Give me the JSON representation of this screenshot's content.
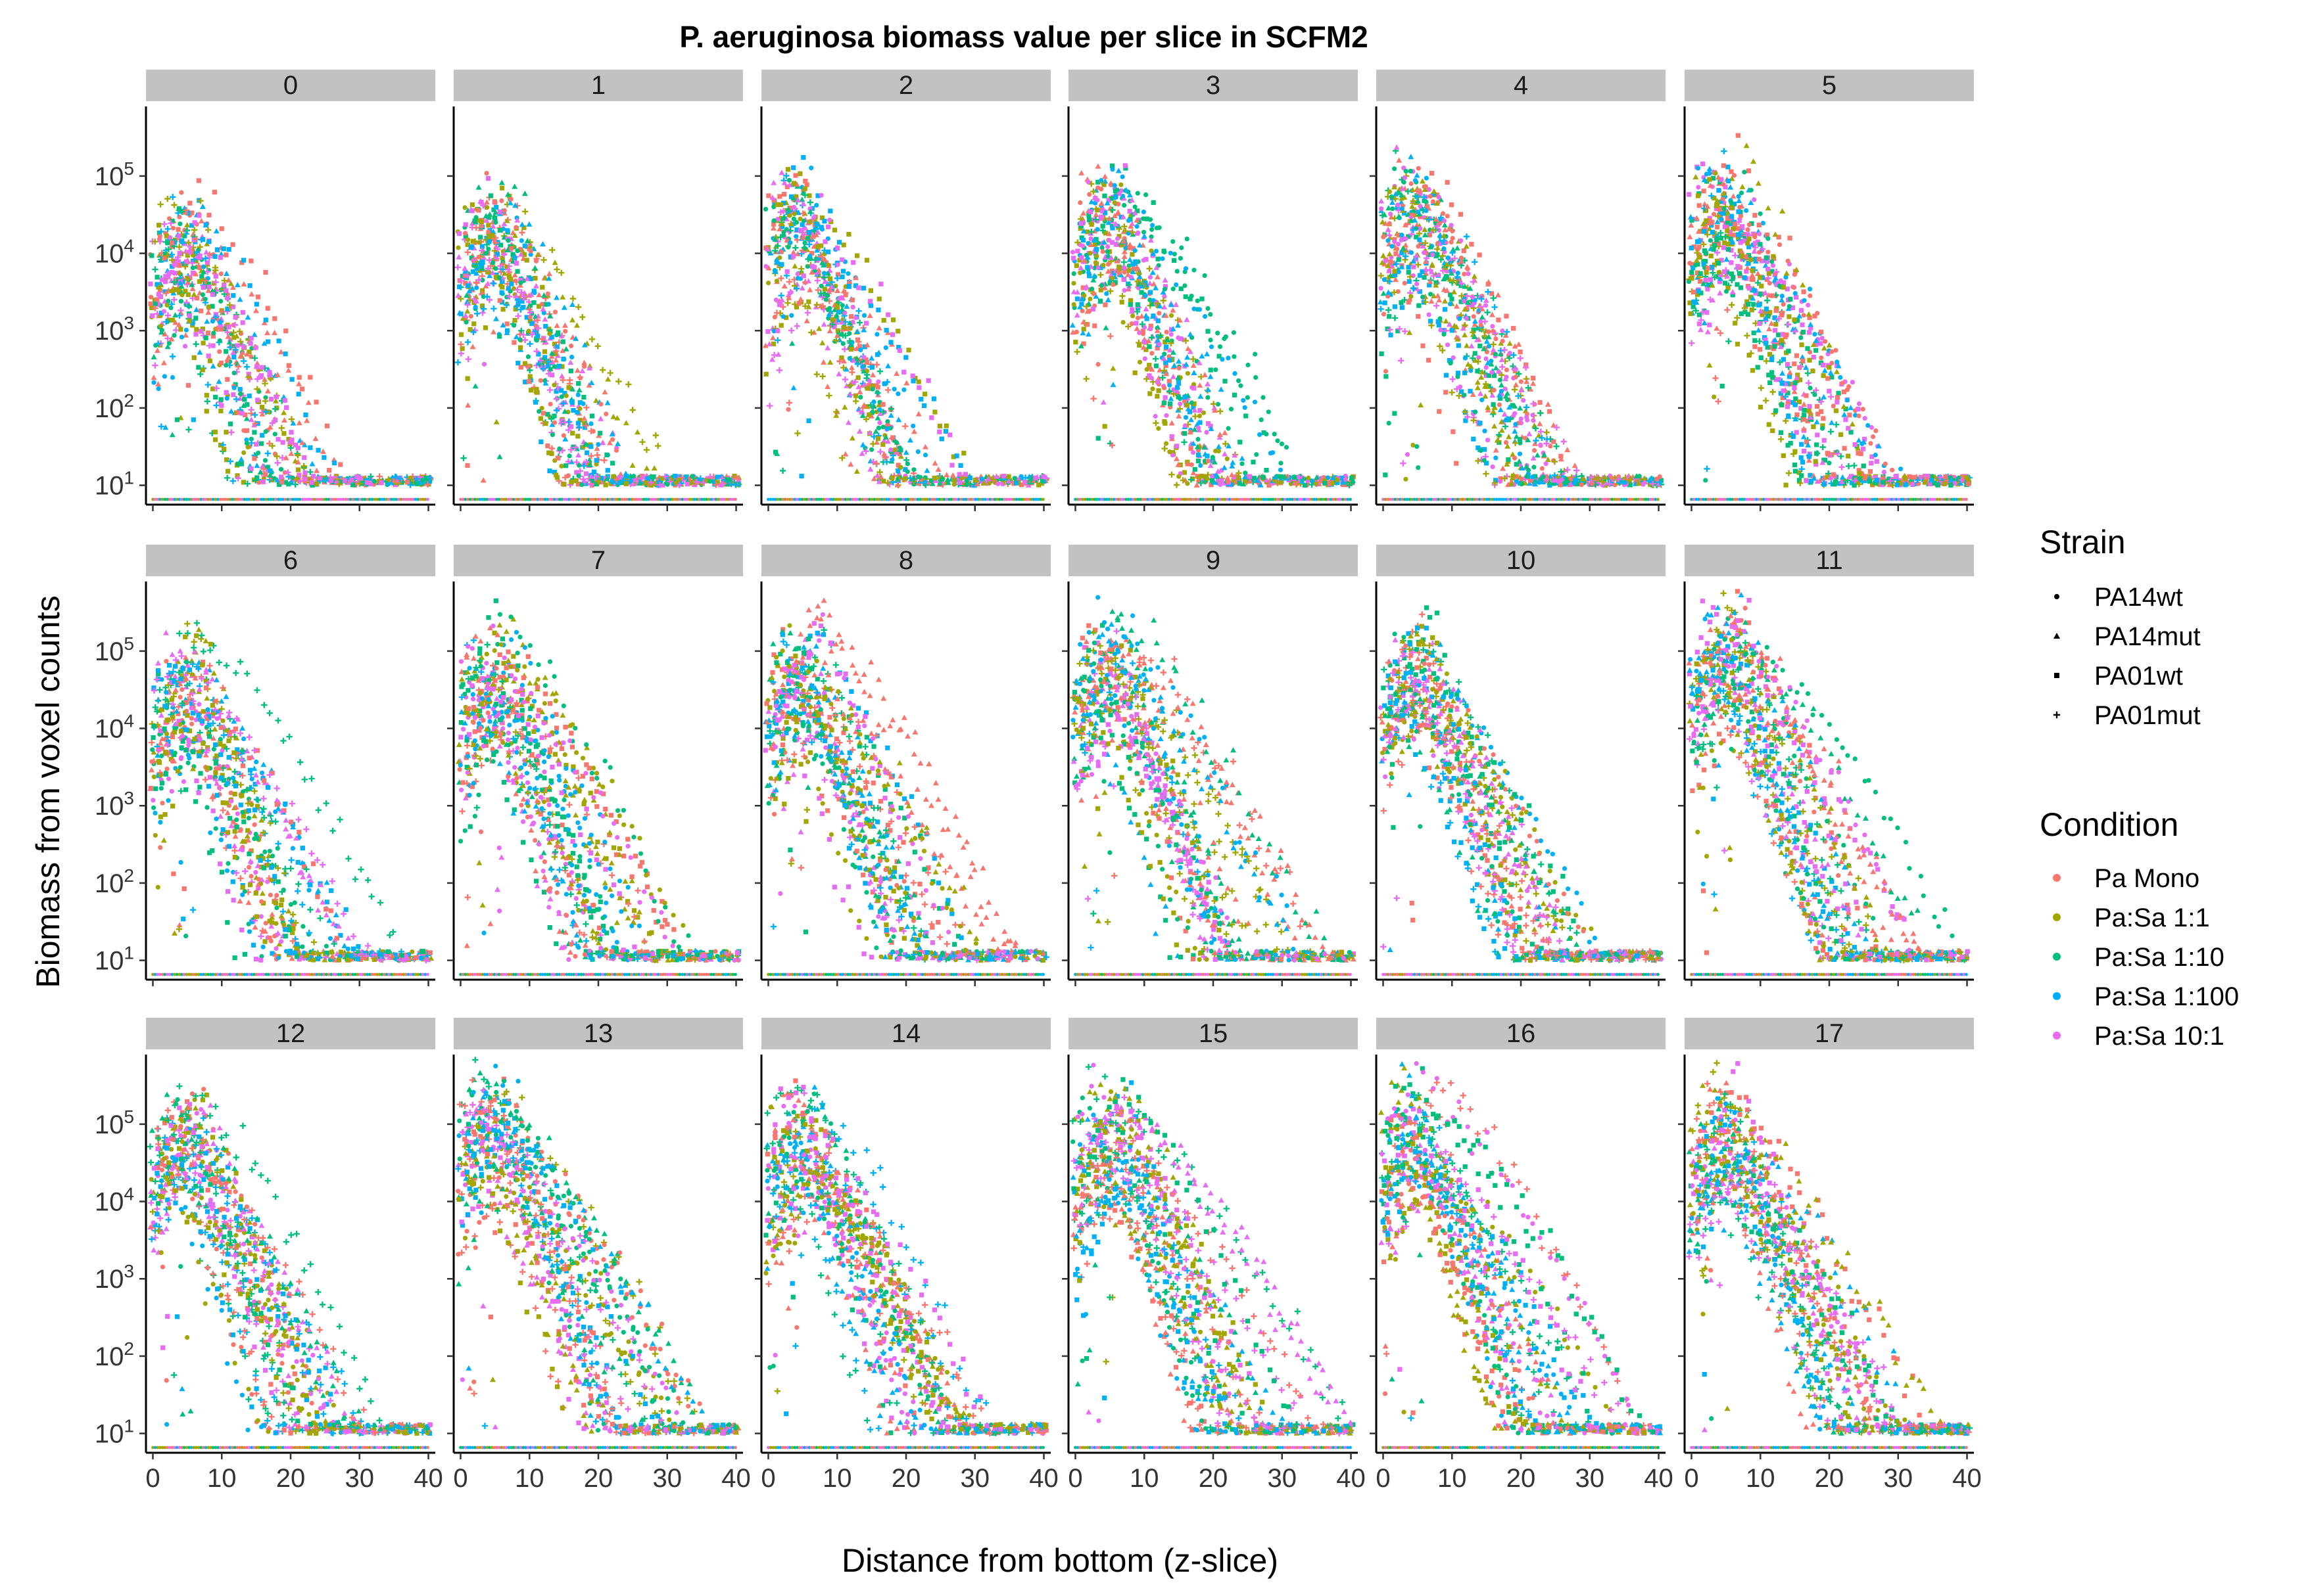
{
  "chart_data": {
    "type": "scatter",
    "title": "P. aeruginosa biomass value per slice in SCFM2",
    "xlabel": "Distance from bottom (z-slice)",
    "ylabel": "Biomass from voxel counts",
    "xlim": [
      -1,
      41
    ],
    "ylim_log10": [
      0.75,
      5.9
    ],
    "y_scale": "log10",
    "x_ticks": [
      "0",
      "10",
      "20",
      "30",
      "40"
    ],
    "x_tick_values": [
      0,
      10,
      20,
      30,
      40
    ],
    "y_ticks": [
      {
        "base": "10",
        "exp": "1",
        "value": 10
      },
      {
        "base": "10",
        "exp": "2",
        "value": 100
      },
      {
        "base": "10",
        "exp": "3",
        "value": 1000
      },
      {
        "base": "10",
        "exp": "4",
        "value": 10000
      },
      {
        "base": "10",
        "exp": "5",
        "value": 100000
      }
    ],
    "facets": [
      "0",
      "1",
      "2",
      "3",
      "4",
      "5",
      "6",
      "7",
      "8",
      "9",
      "10",
      "11",
      "12",
      "13",
      "14",
      "15",
      "16",
      "17"
    ],
    "facet_peaks_log10": [
      4.8,
      4.95,
      5.1,
      5.2,
      5.2,
      5.25,
      5.35,
      5.4,
      5.5,
      5.55,
      5.55,
      5.6,
      5.6,
      5.65,
      5.65,
      5.65,
      5.65,
      5.65
    ],
    "grid": false,
    "legend_placement": "right",
    "legend": {
      "strain_title": "Strain",
      "strains": [
        {
          "name": "PA14wt",
          "shape": "circle"
        },
        {
          "name": "PA14mut",
          "shape": "triangle"
        },
        {
          "name": "PA01wt",
          "shape": "square"
        },
        {
          "name": "PA01mut",
          "shape": "plus"
        }
      ],
      "condition_title": "Condition",
      "conditions": [
        {
          "name": "Pa Mono",
          "color": "#F8766D"
        },
        {
          "name": "Pa:Sa 1:1",
          "color": "#A3A500"
        },
        {
          "name": "Pa:Sa 1:10",
          "color": "#00BF7D"
        },
        {
          "name": "Pa:Sa 1:100",
          "color": "#00B0F6"
        },
        {
          "name": "Pa:Sa 10:1",
          "color": "#E76BF3"
        }
      ]
    }
  },
  "colors": {
    "strip_background": "#C2C2C2",
    "axis_line": "#000000"
  }
}
